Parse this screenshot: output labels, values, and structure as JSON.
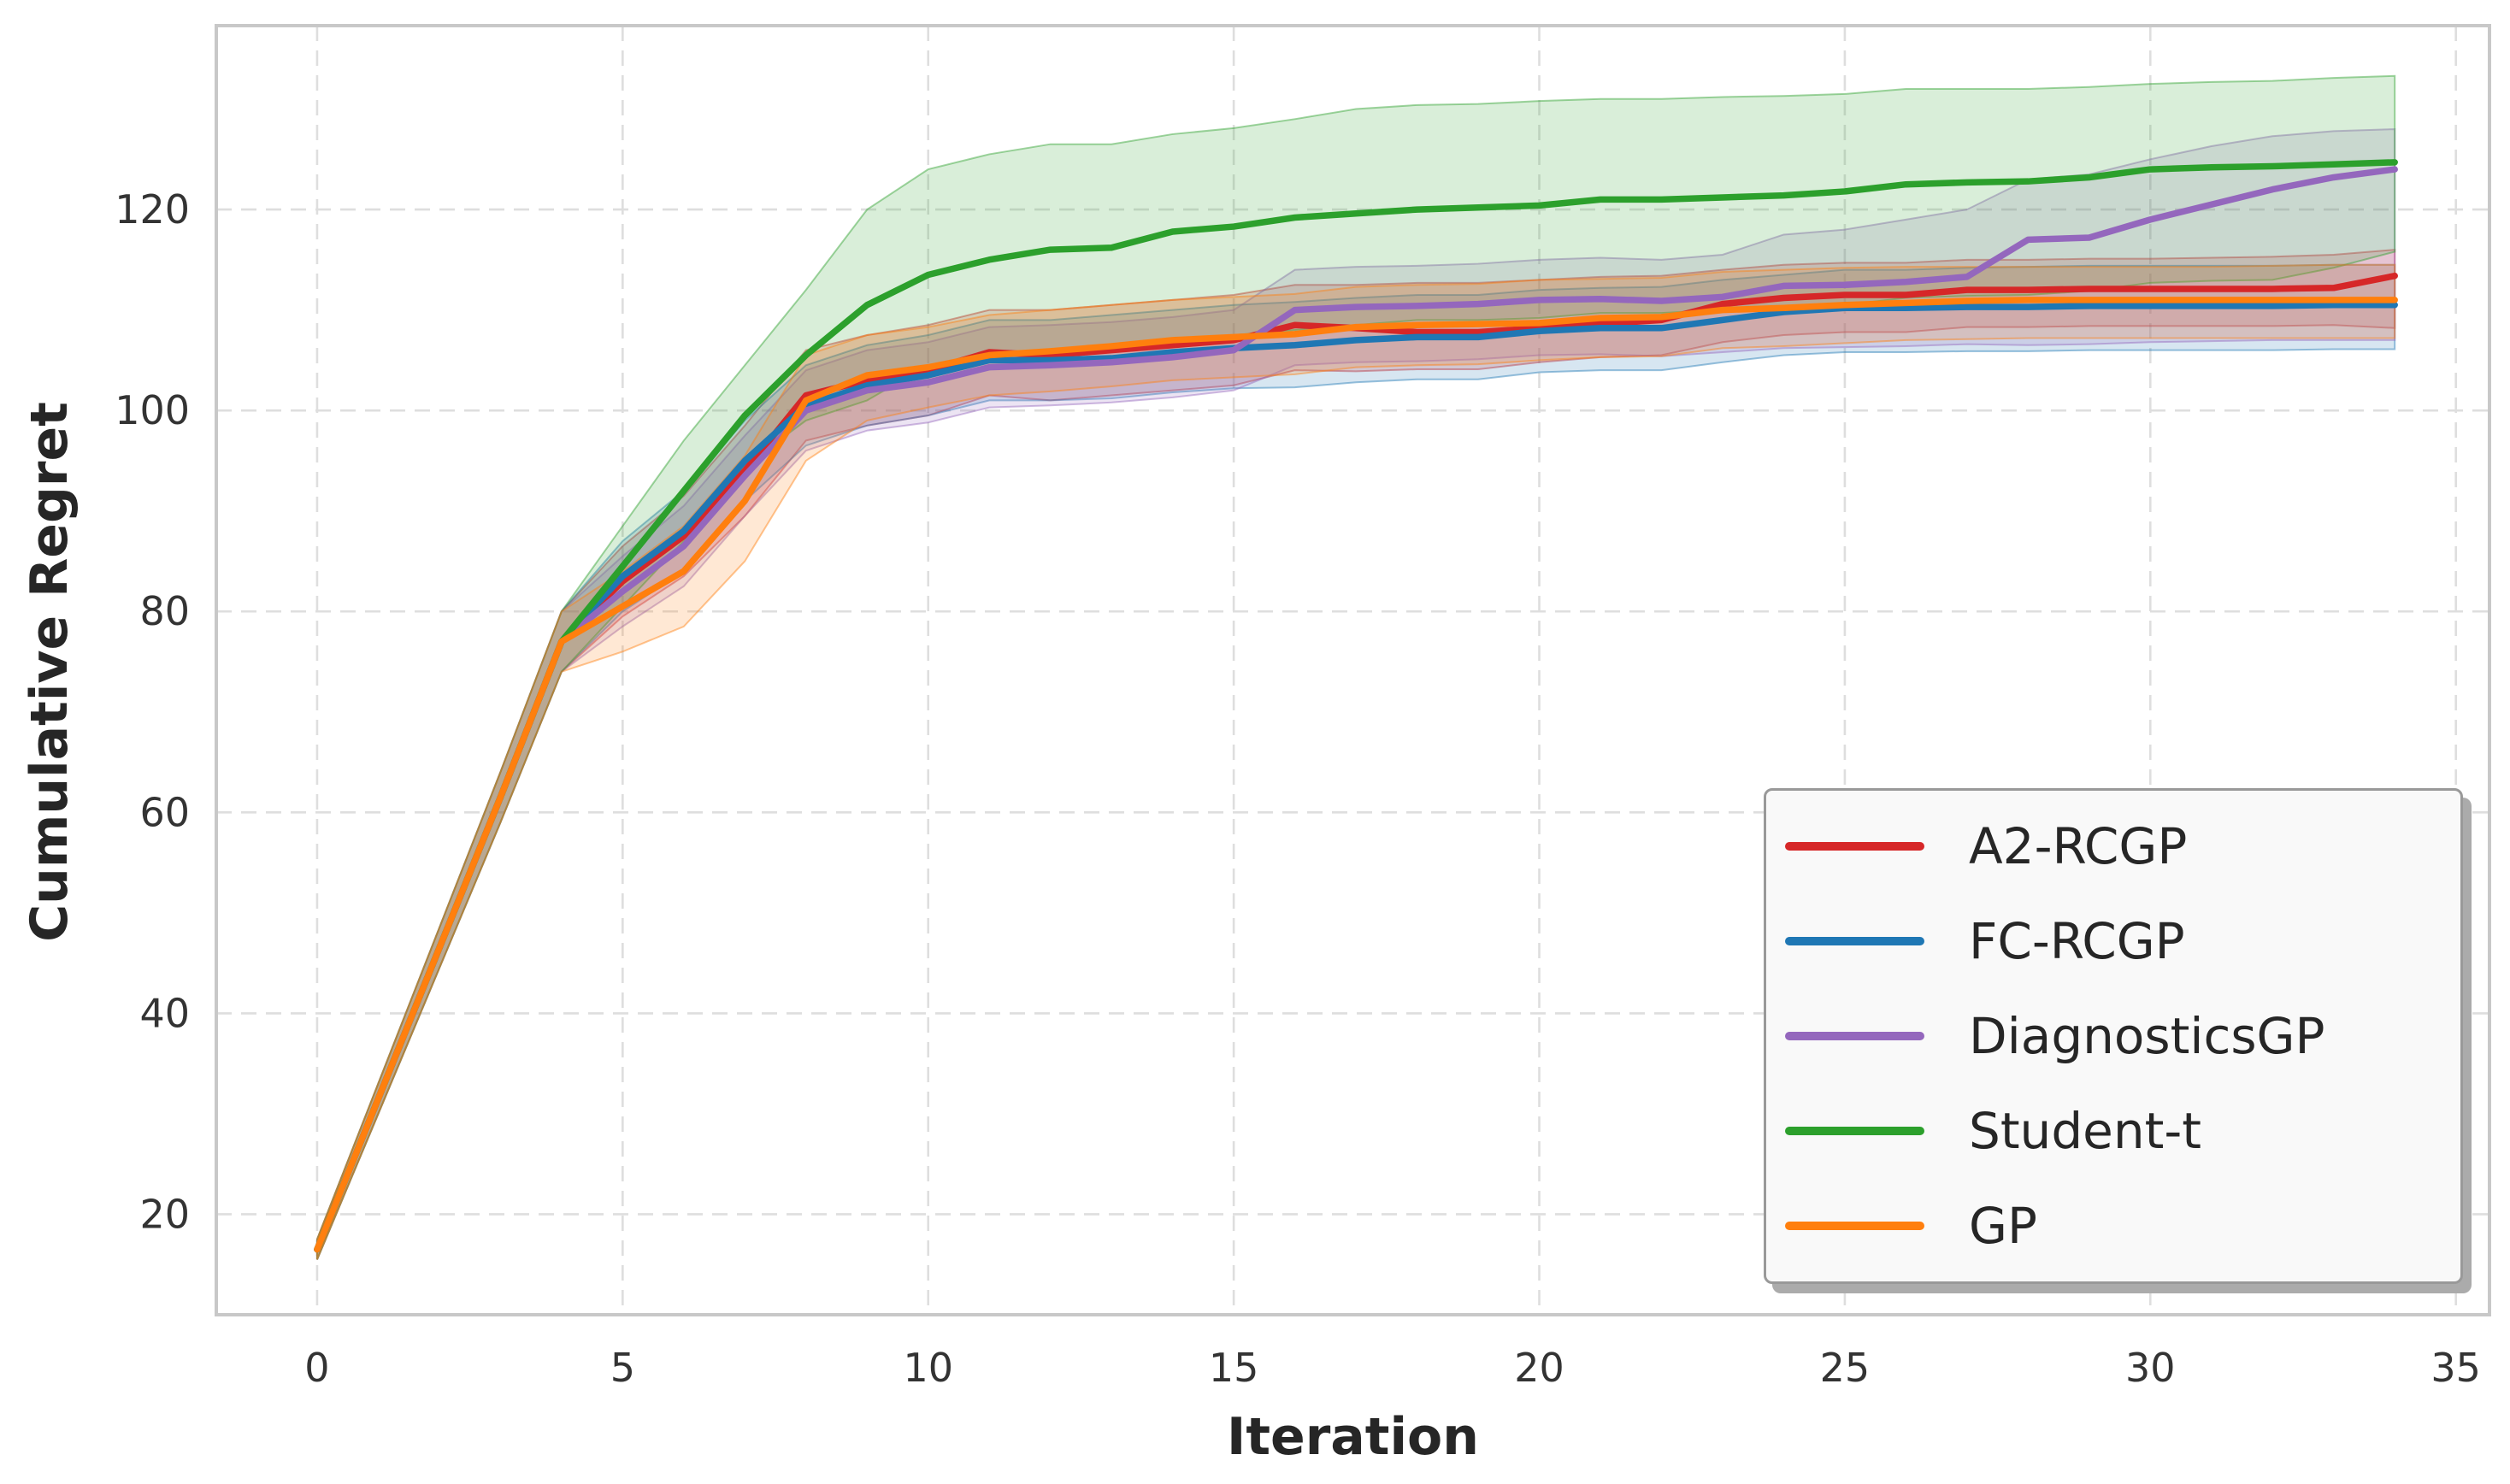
{
  "chart_data": {
    "type": "line",
    "title": "",
    "xlabel": "Iteration",
    "ylabel": "Cumulative Regret",
    "xticks": [
      0,
      5,
      10,
      15,
      20,
      25,
      30,
      35
    ],
    "yticks": [
      20,
      40,
      60,
      80,
      100,
      120
    ],
    "xlim": [
      -1.65,
      35.55
    ],
    "ylim": [
      10.0,
      138.3
    ],
    "grid": true,
    "grid_style": "dashed",
    "legend_position": "lower right",
    "band_opacity": 0.18,
    "band_edge_opacity": 0.45,
    "x": [
      0,
      1,
      2,
      3,
      4,
      5,
      6,
      7,
      8,
      9,
      10,
      11,
      12,
      13,
      14,
      15,
      16,
      17,
      18,
      19,
      20,
      21,
      22,
      23,
      24,
      25,
      26,
      27,
      28,
      29,
      30,
      31,
      32,
      33,
      34
    ],
    "series": [
      {
        "name": "A2-RCGP",
        "color": "#d62728",
        "values": [
          16.5,
          31.5,
          46.5,
          61.5,
          77.0,
          83.0,
          87.5,
          94.0,
          101.5,
          103.0,
          104.0,
          105.8,
          105.5,
          106.0,
          106.5,
          107.0,
          108.5,
          108.2,
          107.8,
          107.8,
          108.2,
          108.6,
          109.0,
          110.6,
          111.2,
          111.5,
          111.5,
          112.0,
          112.0,
          112.1,
          112.1,
          112.1,
          112.1,
          112.2,
          113.4
        ],
        "hi": [
          17.5,
          33.0,
          48.5,
          64.0,
          80.0,
          86.5,
          91.5,
          98.5,
          106.0,
          107.5,
          108.5,
          110.0,
          110.0,
          110.5,
          111.0,
          111.5,
          112.5,
          112.5,
          112.7,
          112.7,
          113.0,
          113.3,
          113.4,
          114.0,
          114.5,
          114.7,
          114.7,
          115.0,
          115.0,
          115.1,
          115.1,
          115.2,
          115.3,
          115.5,
          116.0
        ],
        "lo": [
          15.5,
          30.0,
          44.5,
          59.0,
          74.0,
          79.5,
          83.5,
          89.5,
          97.0,
          98.5,
          99.5,
          101.5,
          101.0,
          101.5,
          102.0,
          102.5,
          104.0,
          103.9,
          104.1,
          104.1,
          104.8,
          105.3,
          105.5,
          106.8,
          107.5,
          107.8,
          107.8,
          108.3,
          108.3,
          108.4,
          108.4,
          108.4,
          108.4,
          108.5,
          108.2
        ]
      },
      {
        "name": "FC-RCGP",
        "color": "#1f77b4",
        "values": [
          16.5,
          31.5,
          46.5,
          61.5,
          77.0,
          83.5,
          88.0,
          95.0,
          100.5,
          102.5,
          103.5,
          105.0,
          105.0,
          105.2,
          105.8,
          106.2,
          106.5,
          107.0,
          107.3,
          107.3,
          107.9,
          108.2,
          108.2,
          109.0,
          109.8,
          110.2,
          110.2,
          110.3,
          110.3,
          110.4,
          110.4,
          110.4,
          110.4,
          110.5,
          110.5
        ],
        "hi": [
          17.5,
          33.0,
          48.5,
          64.0,
          80.0,
          87.0,
          92.0,
          99.0,
          104.5,
          106.5,
          107.5,
          109.0,
          109.0,
          109.5,
          110.0,
          110.5,
          110.8,
          111.2,
          111.5,
          111.5,
          112.0,
          112.2,
          112.3,
          113.0,
          113.5,
          114.0,
          114.0,
          114.2,
          114.3,
          114.4,
          114.4,
          114.4,
          114.4,
          114.5,
          114.5
        ],
        "lo": [
          15.5,
          30.0,
          44.5,
          59.0,
          74.0,
          80.0,
          84.0,
          91.0,
          96.5,
          98.5,
          99.5,
          101.0,
          101.0,
          101.2,
          101.8,
          102.2,
          102.3,
          102.8,
          103.1,
          103.1,
          103.8,
          104.0,
          104.0,
          104.8,
          105.5,
          105.8,
          105.8,
          105.9,
          105.9,
          106.0,
          106.0,
          106.0,
          106.0,
          106.1,
          106.1
        ]
      },
      {
        "name": "DiagnosticsGP",
        "color": "#9467bd",
        "values": [
          16.5,
          31.5,
          46.5,
          61.5,
          77.0,
          82.0,
          86.5,
          93.5,
          100.0,
          102.0,
          102.8,
          104.3,
          104.5,
          104.8,
          105.3,
          106.0,
          110.0,
          110.3,
          110.4,
          110.6,
          111.0,
          111.1,
          110.9,
          111.3,
          112.4,
          112.5,
          112.8,
          113.3,
          117.0,
          117.2,
          119.0,
          120.5,
          122.0,
          123.2,
          124.0
        ],
        "hi": [
          17.5,
          33.0,
          48.5,
          64.0,
          80.0,
          85.5,
          90.5,
          97.5,
          104.0,
          106.0,
          106.8,
          108.3,
          108.5,
          108.8,
          109.3,
          110.0,
          114.0,
          114.3,
          114.4,
          114.6,
          115.0,
          115.2,
          115.0,
          115.5,
          117.5,
          118.0,
          119.0,
          120.0,
          123.0,
          123.5,
          125.0,
          126.3,
          127.3,
          127.8,
          128.0
        ],
        "lo": [
          15.5,
          30.0,
          44.5,
          59.0,
          74.0,
          78.5,
          82.5,
          89.5,
          96.0,
          98.0,
          98.8,
          100.3,
          100.5,
          100.8,
          101.3,
          102.0,
          104.5,
          104.8,
          104.9,
          105.1,
          105.5,
          105.6,
          105.4,
          105.8,
          106.2,
          106.3,
          106.4,
          106.6,
          106.5,
          106.6,
          106.8,
          106.9,
          107.0,
          107.0,
          107.0
        ]
      },
      {
        "name": "Student-t",
        "color": "#2ca02c",
        "values": [
          16.5,
          31.5,
          46.5,
          61.5,
          77.0,
          84.5,
          92.0,
          99.5,
          105.5,
          110.5,
          113.5,
          115.0,
          116.0,
          116.2,
          117.8,
          118.3,
          119.2,
          119.6,
          120.0,
          120.2,
          120.4,
          121.0,
          121.0,
          121.2,
          121.4,
          121.8,
          122.5,
          122.7,
          122.8,
          123.2,
          124.0,
          124.2,
          124.3,
          124.5,
          124.7
        ],
        "hi": [
          17.5,
          33.0,
          48.5,
          64.0,
          80.0,
          88.5,
          97.0,
          104.5,
          112.0,
          120.0,
          124.0,
          125.5,
          126.5,
          126.5,
          127.5,
          128.1,
          129.0,
          130.0,
          130.4,
          130.5,
          130.8,
          131.0,
          131.0,
          131.2,
          131.3,
          131.5,
          132.0,
          132.0,
          132.0,
          132.2,
          132.5,
          132.7,
          132.8,
          133.1,
          133.3
        ],
        "lo": [
          15.5,
          30.0,
          44.5,
          59.0,
          74.0,
          80.5,
          87.0,
          94.5,
          99.0,
          101.0,
          104.5,
          105.5,
          106.0,
          106.0,
          107.0,
          107.5,
          108.0,
          108.5,
          109.0,
          109.0,
          109.2,
          109.7,
          109.7,
          110.0,
          110.2,
          110.5,
          111.2,
          111.4,
          111.5,
          111.9,
          112.7,
          112.9,
          113.0,
          114.2,
          115.8
        ]
      },
      {
        "name": "GP",
        "color": "#ff7f0e",
        "values": [
          16.5,
          31.5,
          46.5,
          61.5,
          77.0,
          80.5,
          84.0,
          91.0,
          101.0,
          103.5,
          104.3,
          105.5,
          105.9,
          106.4,
          107.0,
          107.3,
          107.6,
          108.3,
          108.5,
          108.6,
          108.7,
          109.2,
          109.3,
          110.0,
          110.2,
          110.5,
          110.7,
          110.9,
          111.0,
          111.0,
          111.0,
          111.0,
          111.0,
          111.0,
          111.0
        ],
        "hi": [
          17.5,
          33.0,
          48.5,
          64.0,
          80.0,
          84.0,
          88.5,
          95.5,
          105.5,
          107.5,
          108.3,
          109.5,
          110.0,
          110.5,
          111.0,
          111.3,
          111.6,
          112.3,
          112.5,
          112.6,
          113.0,
          113.1,
          113.2,
          113.8,
          114.0,
          114.2,
          114.3,
          114.3,
          114.3,
          114.3,
          114.3,
          114.3,
          114.4,
          114.5,
          114.5
        ],
        "lo": [
          15.5,
          30.0,
          44.5,
          59.0,
          74.0,
          76.0,
          78.5,
          85.0,
          95.0,
          99.0,
          100.3,
          101.5,
          101.9,
          102.4,
          103.0,
          103.3,
          103.6,
          104.3,
          104.5,
          104.6,
          105.0,
          105.3,
          105.4,
          106.2,
          106.4,
          106.7,
          107.0,
          107.1,
          107.2,
          107.2,
          107.2,
          107.2,
          107.2,
          107.2,
          107.2
        ]
      }
    ],
    "style": {
      "background": "#ffffff",
      "grid_color": "#dedede",
      "spine_color": "#c8c8c8",
      "text_color": "#333333",
      "line_width": 7.5
    }
  }
}
